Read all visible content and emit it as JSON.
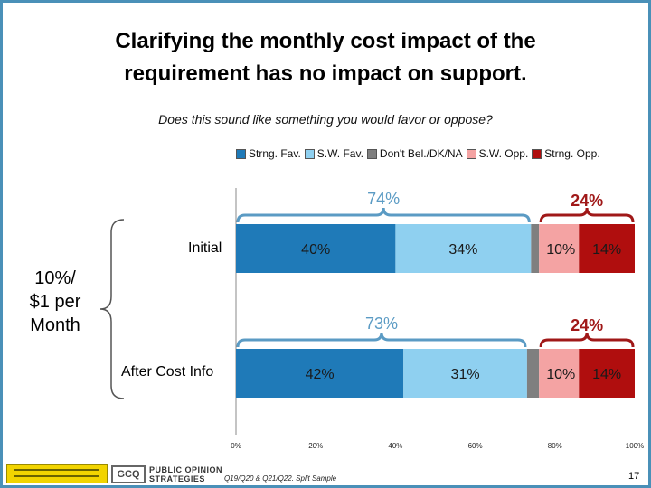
{
  "title_line1": "Clarifying the monthly cost impact of the",
  "title_line2": "requirement has no impact on support.",
  "subtitle": "Does this sound like something you would favor or oppose?",
  "group_label": [
    "10%/",
    "$1 per",
    "Month"
  ],
  "footer": {
    "source": "Q19/Q20 & Q21/Q22. Split Sample",
    "page": "17",
    "logo_text": [
      "PUBLIC OPINION",
      "STRATEGIES"
    ],
    "logo_mark": "GCQ"
  },
  "colors": {
    "strong_fav": "#1f7ab8",
    "sw_fav": "#8fd0f0",
    "dont_know": "#7f7f7f",
    "sw_opp": "#f4a3a3",
    "strong_opp": "#b00e0e",
    "fav_bracket": "#5b9bc4",
    "opp_bracket": "#a01818"
  },
  "chart_data": {
    "type": "bar",
    "orientation": "horizontal",
    "stacked": true,
    "title": "Clarifying the monthly cost impact of the requirement has no impact on support.",
    "subtitle": "Does this sound like something you would favor or oppose?",
    "categories": [
      "Initial",
      "After Cost Info"
    ],
    "series": [
      {
        "name": "Strng. Fav.",
        "values": [
          40,
          42
        ]
      },
      {
        "name": "S.W. Fav.",
        "values": [
          34,
          31
        ]
      },
      {
        "name": "Don't Bel./DK/NA",
        "values": [
          2,
          3
        ]
      },
      {
        "name": "S.W. Opp.",
        "values": [
          10,
          10
        ]
      },
      {
        "name": "Strng. Opp.",
        "values": [
          14,
          14
        ]
      }
    ],
    "data_labels": [
      [
        "40%",
        "34%",
        "",
        "10%",
        "14%"
      ],
      [
        "42%",
        "31%",
        "",
        "10%",
        "14%"
      ]
    ],
    "favor_totals": [
      "74%",
      "73%"
    ],
    "oppose_totals": [
      "24%",
      "24%"
    ],
    "xlim": [
      0,
      100
    ],
    "xticks": [
      "0%",
      "20%",
      "40%",
      "60%",
      "80%",
      "100%"
    ],
    "legend": [
      "Strng. Fav.",
      "S.W. Fav.",
      "Don't Bel./DK/NA",
      "S.W. Opp.",
      "Strng. Opp."
    ],
    "legend_position": "top"
  }
}
